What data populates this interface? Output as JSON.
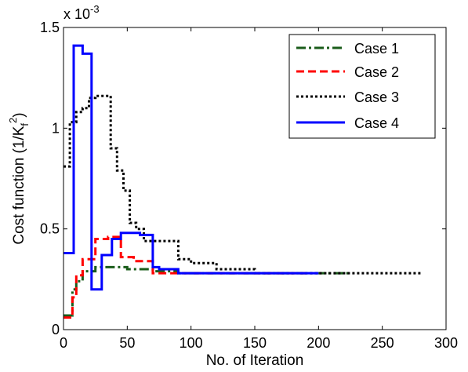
{
  "chart_data": {
    "type": "line",
    "xlabel": "No. of Iteration",
    "ylabel_main": "Cost function (1/K",
    "ylabel_sub": "f",
    "ylabel_sup": "2",
    "ylabel_close": ")",
    "y_multiplier_base": "x 10",
    "y_multiplier_exp": "-3",
    "xlim": [
      0,
      300
    ],
    "ylim": [
      0,
      1.5
    ],
    "xticks": [
      0,
      50,
      100,
      150,
      200,
      250,
      300
    ],
    "yticks": [
      0,
      0.5,
      1,
      1.5
    ],
    "xtick_labels": [
      "0",
      "50",
      "100",
      "150",
      "200",
      "250",
      "300"
    ],
    "ytick_labels": [
      "0",
      "0.5",
      "1",
      "1.5"
    ],
    "grid": false,
    "legend_position": "top-right",
    "series": [
      {
        "name": "Case 1",
        "color": "#1a5c1a",
        "style": "dashdot",
        "x": [
          0,
          7,
          7,
          10,
          10,
          15,
          15,
          25,
          25,
          50,
          50,
          70,
          70,
          90,
          90,
          110,
          110,
          150,
          150,
          200,
          200,
          225
        ],
        "y": [
          0.07,
          0.07,
          0.2,
          0.2,
          0.24,
          0.24,
          0.29,
          0.29,
          0.31,
          0.31,
          0.3,
          0.3,
          0.29,
          0.29,
          0.28,
          0.28,
          0.28,
          0.28,
          0.28,
          0.28,
          0.28,
          0.28
        ]
      },
      {
        "name": "Case 2",
        "color": "#ff0000",
        "style": "dashed",
        "x": [
          0,
          7,
          7,
          10,
          10,
          15,
          15,
          25,
          25,
          35,
          35,
          45,
          45,
          55,
          55,
          70,
          70,
          90,
          90,
          120,
          120,
          190
        ],
        "y": [
          0.06,
          0.06,
          0.16,
          0.16,
          0.27,
          0.27,
          0.35,
          0.35,
          0.45,
          0.45,
          0.46,
          0.46,
          0.36,
          0.36,
          0.34,
          0.34,
          0.28,
          0.28,
          0.28,
          0.28,
          0.28,
          0.28
        ]
      },
      {
        "name": "Case 3",
        "color": "#000000",
        "style": "dotted",
        "x": [
          0,
          5,
          5,
          10,
          10,
          15,
          15,
          20,
          20,
          25,
          25,
          37,
          37,
          42,
          42,
          47,
          47,
          52,
          52,
          57,
          57,
          63,
          63,
          75,
          75,
          90,
          90,
          100,
          100,
          120,
          120,
          150,
          150,
          200,
          200,
          280
        ],
        "y": [
          0.81,
          0.81,
          1.03,
          1.03,
          1.08,
          1.08,
          1.1,
          1.1,
          1.15,
          1.15,
          1.16,
          1.16,
          0.9,
          0.9,
          0.79,
          0.79,
          0.69,
          0.69,
          0.53,
          0.53,
          0.5,
          0.5,
          0.44,
          0.44,
          0.44,
          0.44,
          0.35,
          0.35,
          0.33,
          0.33,
          0.3,
          0.3,
          0.28,
          0.28,
          0.28,
          0.28
        ]
      },
      {
        "name": "Case 4",
        "color": "#0000ff",
        "style": "solid",
        "x": [
          0,
          8,
          8,
          15,
          15,
          22,
          22,
          30,
          30,
          38,
          38,
          45,
          45,
          60,
          60,
          70,
          70,
          75,
          75,
          90,
          90,
          100,
          100,
          125,
          125,
          200
        ],
        "y": [
          0.38,
          0.38,
          1.41,
          1.41,
          1.37,
          1.37,
          0.2,
          0.2,
          0.37,
          0.37,
          0.45,
          0.45,
          0.48,
          0.48,
          0.47,
          0.47,
          0.31,
          0.31,
          0.3,
          0.3,
          0.28,
          0.28,
          0.28,
          0.28,
          0.28,
          0.28
        ]
      }
    ]
  }
}
